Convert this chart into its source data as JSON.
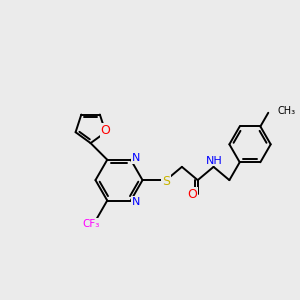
{
  "bg": "#ebebeb",
  "bond_color": "#000000",
  "O_color": "#ff0000",
  "N_color": "#0000ff",
  "S_color": "#c8b400",
  "F_color": "#ff00ff",
  "H_color": "#4a9090",
  "lw": 1.4,
  "fs": 8.0,
  "xlim": [
    0,
    10
  ],
  "ylim": [
    0,
    10
  ]
}
